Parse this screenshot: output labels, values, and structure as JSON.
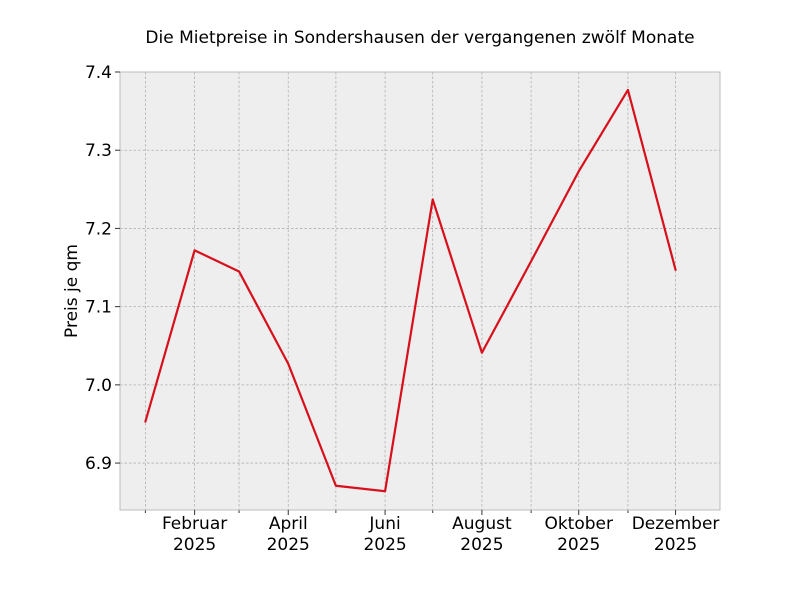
{
  "chart_data": {
    "type": "line",
    "title": "Die Mietpreise in Sondershausen der vergangenen zwölf Monate",
    "xlabel": "",
    "ylabel": "Preis je qm",
    "x": [
      "2025-01",
      "2025-02",
      "2025-03",
      "2025-04",
      "2025-05",
      "2025-06",
      "2025-07",
      "2025-08",
      "2025-09",
      "2025-10",
      "2025-11",
      "2025-12"
    ],
    "series": [
      {
        "values": [
          6.953,
          7.172,
          7.145,
          7.027,
          6.871,
          6.864,
          7.237,
          7.041,
          7.158,
          7.273,
          7.377,
          7.147
        ],
        "color": "#d7101c"
      }
    ],
    "xticks": [
      {
        "x": "2025-02",
        "month": "Februar",
        "year": "2025"
      },
      {
        "x": "2025-04",
        "month": "April",
        "year": "2025"
      },
      {
        "x": "2025-06",
        "month": "Juni",
        "year": "2025"
      },
      {
        "x": "2025-08",
        "month": "August",
        "year": "2025"
      },
      {
        "x": "2025-10",
        "month": "Oktober",
        "year": "2025"
      },
      {
        "x": "2025-12",
        "month": "Dezember",
        "year": "2025"
      }
    ],
    "yticks": [
      "6.9",
      "7.0",
      "7.1",
      "7.2",
      "7.3",
      "7.4"
    ],
    "xlim": [
      "2024-12-16",
      "2025-12-29"
    ],
    "ylim": [
      6.84,
      7.4
    ],
    "grid": true,
    "plot_background": "#eeeeee",
    "grid_color": "#b0b0b0"
  }
}
